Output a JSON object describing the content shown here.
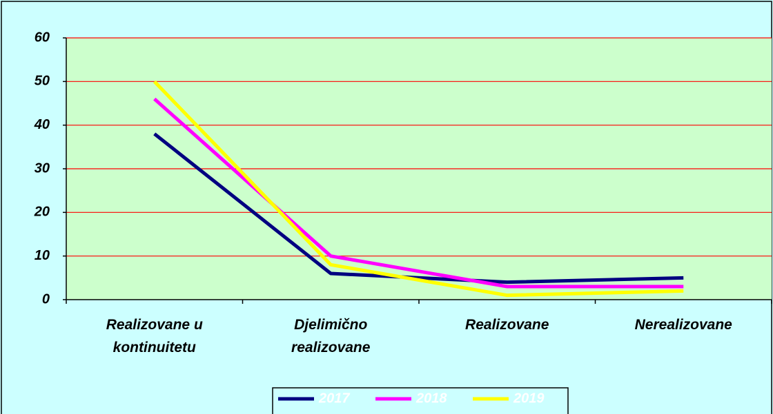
{
  "chart_data": {
    "type": "line",
    "categories": [
      "Realizovane u kontinuitetu",
      "Djelimično realizovane",
      "Realizovane",
      "Nerealizovane"
    ],
    "series": [
      {
        "name": "2017",
        "color": "#000080",
        "values": [
          38,
          6,
          4,
          5
        ]
      },
      {
        "name": "2018",
        "color": "#ff00ff",
        "values": [
          46,
          10,
          3,
          3
        ]
      },
      {
        "name": "2019",
        "color": "#ffff00",
        "values": [
          50,
          8,
          1,
          2
        ]
      }
    ],
    "ylim": [
      0,
      60
    ],
    "yticks": [
      0,
      10,
      20,
      30,
      40,
      50,
      60
    ],
    "grid": true,
    "legend": "bottom"
  }
}
